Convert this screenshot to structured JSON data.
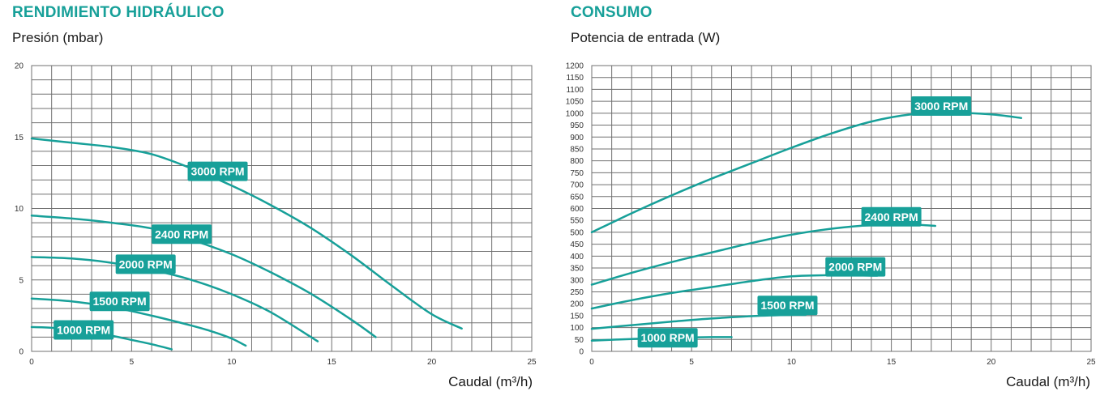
{
  "colors": {
    "accent": "#17a099",
    "grid": "#707070"
  },
  "chart_data": [
    {
      "type": "line",
      "title": "RENDIMIENTO HIDRÁULICO",
      "ylabel": "Presión (mbar)",
      "xlabel": "Caudal (m³/h)",
      "xlim": [
        0,
        25
      ],
      "ylim": [
        0,
        20
      ],
      "xticks": [
        0,
        5,
        10,
        15,
        20,
        25
      ],
      "yticks": [
        0,
        5,
        10,
        15,
        20
      ],
      "grid": true,
      "series": [
        {
          "name": "3000 RPM",
          "x": [
            0,
            2,
            4,
            6,
            8,
            10,
            12,
            14,
            16,
            18,
            20,
            21.5
          ],
          "y": [
            14.9,
            14.6,
            14.3,
            13.8,
            12.8,
            11.6,
            10.2,
            8.6,
            6.7,
            4.6,
            2.6,
            1.6
          ]
        },
        {
          "name": "2400 RPM",
          "x": [
            0,
            2,
            4,
            6,
            8,
            10,
            12,
            14,
            16,
            17.2
          ],
          "y": [
            9.5,
            9.3,
            9.0,
            8.6,
            7.8,
            6.8,
            5.5,
            4.0,
            2.2,
            1.0
          ]
        },
        {
          "name": "2000 RPM",
          "x": [
            0,
            2,
            4,
            6,
            8,
            10,
            12,
            14.3
          ],
          "y": [
            6.6,
            6.5,
            6.2,
            5.7,
            5.0,
            4.0,
            2.7,
            0.7
          ]
        },
        {
          "name": "1500 RPM",
          "x": [
            0,
            2,
            4,
            6,
            8,
            9,
            10,
            10.7
          ],
          "y": [
            3.7,
            3.5,
            3.1,
            2.5,
            1.8,
            1.4,
            0.9,
            0.4
          ]
        },
        {
          "name": "1000 RPM",
          "x": [
            0,
            1,
            2,
            3,
            4,
            5,
            6,
            7.0
          ],
          "y": [
            1.7,
            1.65,
            1.5,
            1.35,
            1.1,
            0.8,
            0.5,
            0.15
          ]
        }
      ],
      "labels": [
        {
          "text": "3000 RPM",
          "x": 9.3,
          "y": 12.6
        },
        {
          "text": "2400 RPM",
          "x": 7.5,
          "y": 8.2
        },
        {
          "text": "2000 RPM",
          "x": 5.7,
          "y": 6.1
        },
        {
          "text": "1500 RPM",
          "x": 4.4,
          "y": 3.5
        },
        {
          "text": "1000 RPM",
          "x": 2.6,
          "y": 1.5
        }
      ]
    },
    {
      "type": "line",
      "title": "CONSUMO",
      "ylabel": "Potencia de entrada (W)",
      "xlabel": "Caudal (m³/h)",
      "xlim": [
        0,
        25
      ],
      "ylim": [
        0,
        1200
      ],
      "xticks": [
        0,
        5,
        10,
        15,
        20,
        25
      ],
      "yticks": [
        0,
        50,
        100,
        150,
        200,
        250,
        300,
        350,
        400,
        450,
        500,
        550,
        600,
        650,
        700,
        750,
        800,
        850,
        900,
        950,
        1000,
        1050,
        1100,
        1150,
        1200
      ],
      "grid": true,
      "series": [
        {
          "name": "3000 RPM",
          "x": [
            0,
            2,
            4,
            6,
            8,
            10,
            12,
            14,
            16,
            18,
            20,
            21.5
          ],
          "y": [
            500,
            580,
            655,
            725,
            790,
            855,
            915,
            965,
            995,
            1002,
            995,
            980
          ]
        },
        {
          "name": "2400 RPM",
          "x": [
            0,
            2,
            4,
            6,
            8,
            10,
            12,
            14,
            16,
            17.2
          ],
          "y": [
            280,
            330,
            375,
            415,
            455,
            490,
            515,
            530,
            532,
            527
          ]
        },
        {
          "name": "2000 RPM",
          "x": [
            0,
            2,
            4,
            6,
            8,
            10,
            12,
            14.3
          ],
          "y": [
            180,
            215,
            245,
            270,
            295,
            315,
            320,
            318
          ]
        },
        {
          "name": "1500 RPM",
          "x": [
            0,
            2,
            4,
            6,
            8,
            10,
            10.7
          ],
          "y": [
            95,
            110,
            125,
            138,
            148,
            153,
            153
          ]
        },
        {
          "name": "1000 RPM",
          "x": [
            0,
            2,
            4,
            6,
            7.0
          ],
          "y": [
            45,
            52,
            57,
            60,
            60
          ]
        }
      ],
      "labels": [
        {
          "text": "3000 RPM",
          "x": 17.5,
          "y": 1030
        },
        {
          "text": "2400 RPM",
          "x": 15.0,
          "y": 565
        },
        {
          "text": "2000 RPM",
          "x": 13.2,
          "y": 355
        },
        {
          "text": "1500 RPM",
          "x": 9.8,
          "y": 193
        },
        {
          "text": "1000 RPM",
          "x": 3.8,
          "y": 57
        }
      ]
    }
  ]
}
